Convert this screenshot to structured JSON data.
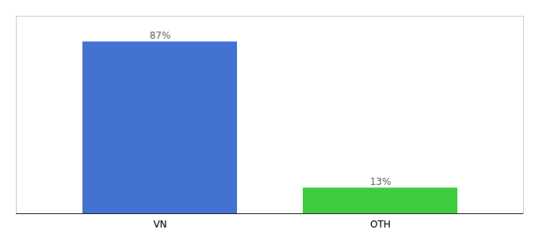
{
  "chart_data": {
    "type": "bar",
    "categories": [
      "VN",
      "OTH"
    ],
    "values": [
      87,
      13
    ],
    "value_labels": [
      "87%",
      "13%"
    ],
    "colors": [
      "#4472d3",
      "#3dcc3d"
    ],
    "ylim": [
      0,
      100
    ],
    "data_labels": true,
    "tick_labels": "x",
    "grid": false
  }
}
